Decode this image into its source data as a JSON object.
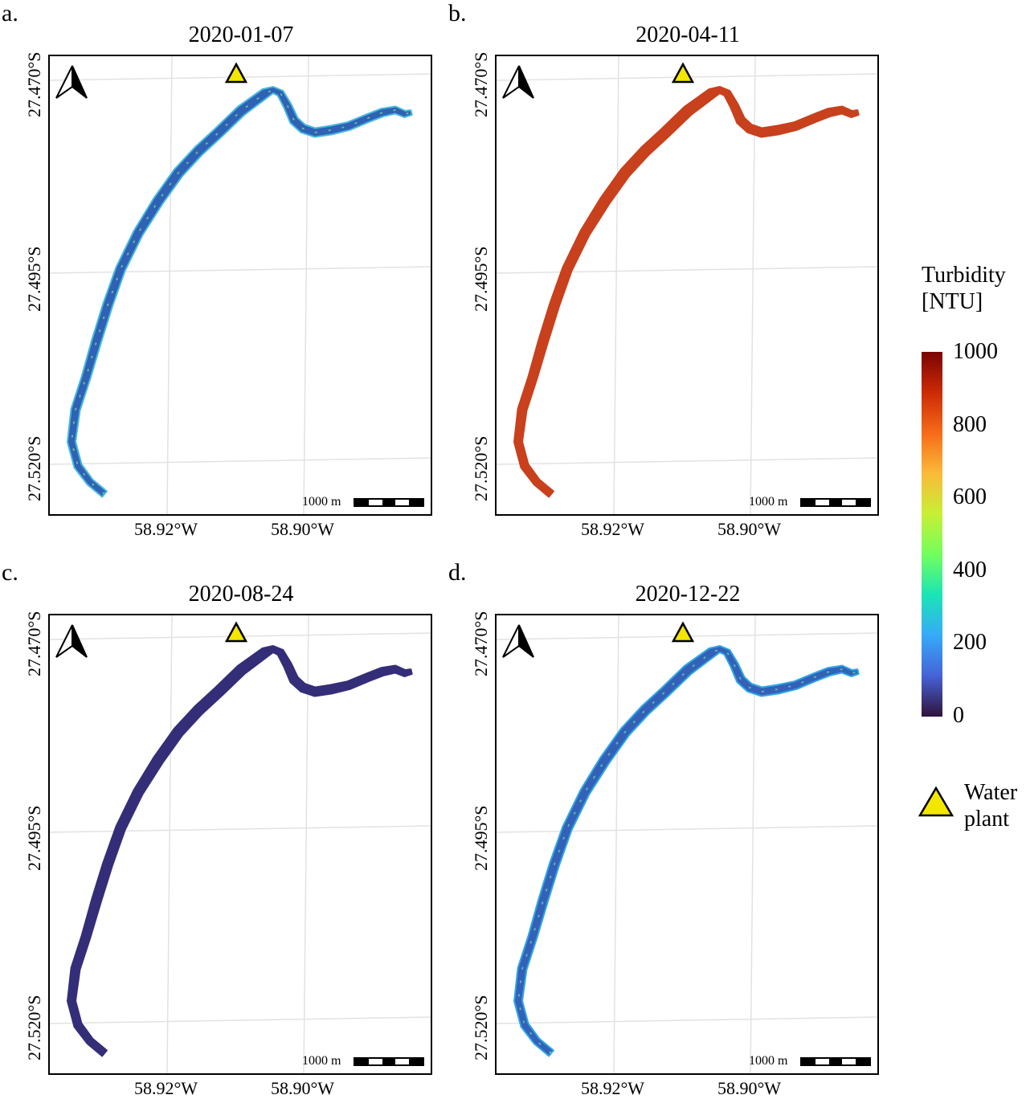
{
  "panels": [
    {
      "letter": "a.",
      "date": "2020-01-07",
      "fill": "#2f61b4",
      "edge": "#45b8e0",
      "speckle": "#7ee08a"
    },
    {
      "letter": "b.",
      "date": "2020-04-11",
      "fill": "#c8401c",
      "edge": "#c8401c",
      "speckle": "#c8401c"
    },
    {
      "letter": "c.",
      "date": "2020-08-24",
      "fill": "#342e78",
      "edge": "#342e78",
      "speckle": "#342e78"
    },
    {
      "letter": "d.",
      "date": "2020-12-22",
      "fill": "#3461b8",
      "edge": "#2ea6e8",
      "speckle": "#5fe0a6"
    }
  ],
  "lat_labels": [
    "27.470°S",
    "27.495°S",
    "27.520°S"
  ],
  "lon_labels": [
    "58.92°W",
    "58.90°W"
  ],
  "scale_label": "1000 m",
  "legend": {
    "title_line1": "Turbidity",
    "title_line2": "[NTU]",
    "ticks": [
      "1000",
      "800",
      "600",
      "400",
      "200",
      "0"
    ],
    "colors": [
      "#30123b",
      "#4662d7",
      "#36aaf9",
      "#1ae4b6",
      "#72fe5e",
      "#c8ef34",
      "#faba39",
      "#f66b19",
      "#cb2a04",
      "#7a0403"
    ],
    "marker_color": "#f3e600",
    "marker_label_line1": "Water",
    "marker_label_line2": "plant"
  }
}
